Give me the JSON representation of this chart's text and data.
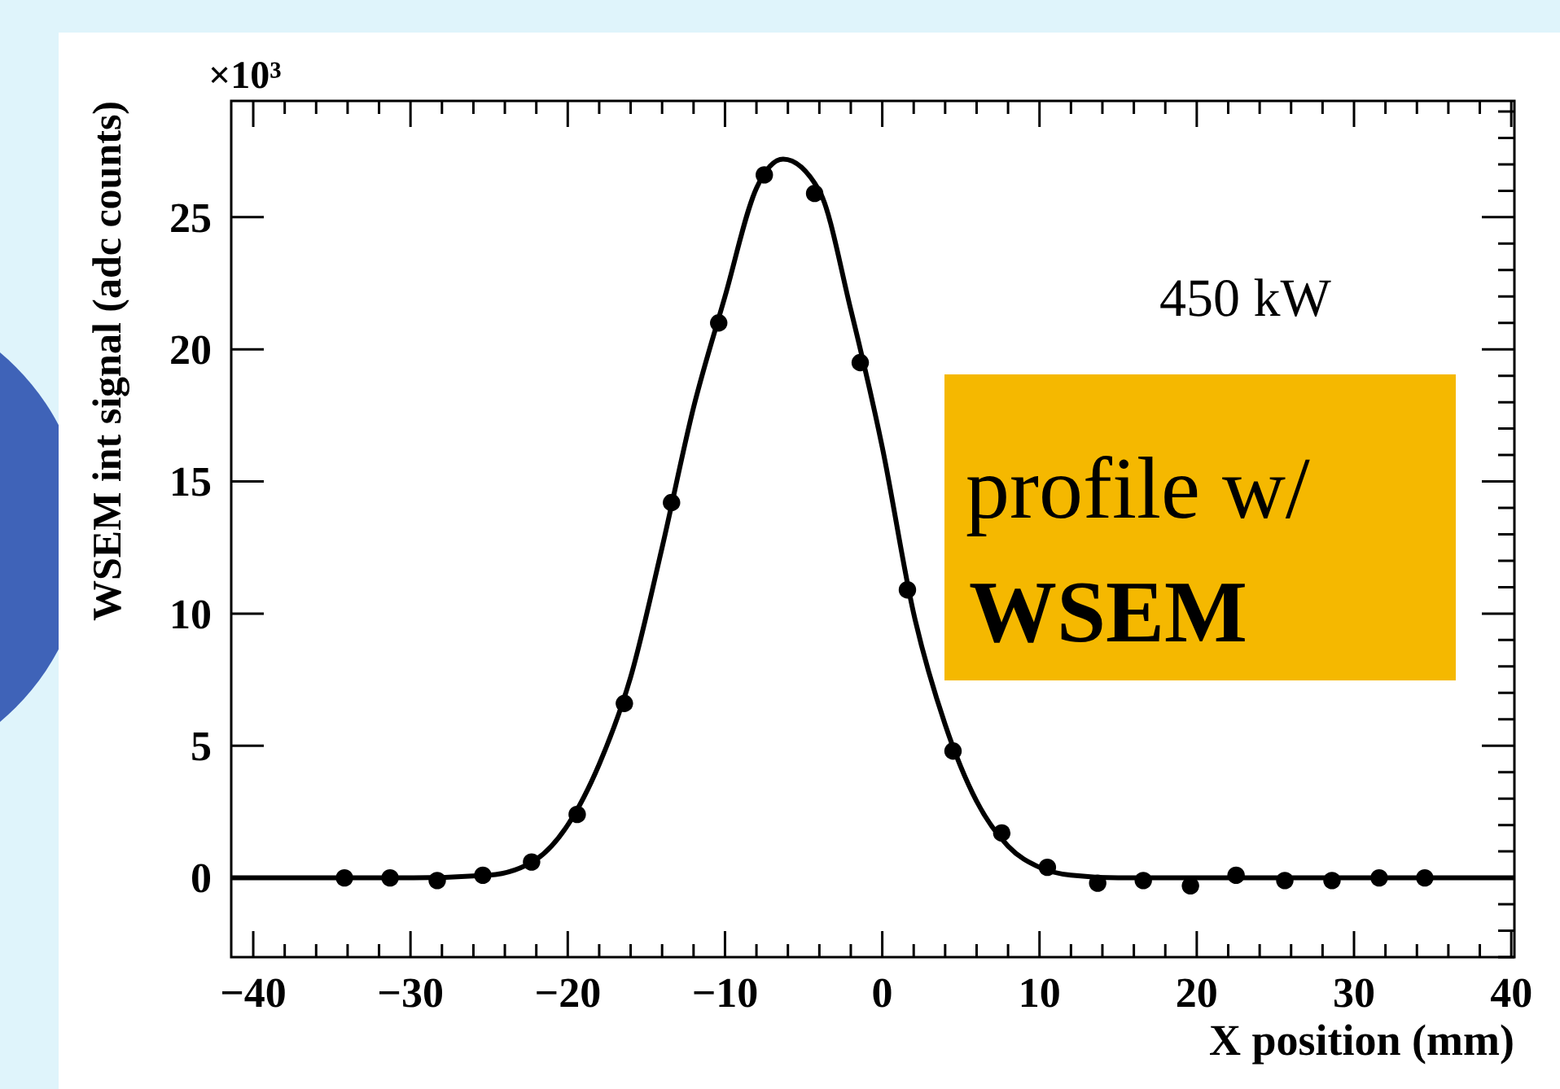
{
  "chart_data": {
    "type": "scatter",
    "xlabel": "X position (mm)",
    "ylabel": "WSEM int signal (adc counts)",
    "xlim": [
      -41.4,
      40.2
    ],
    "ylim": [
      -3,
      29.4
    ],
    "xticks": [
      -40,
      -30,
      -20,
      -10,
      0,
      10,
      20,
      30,
      40
    ],
    "yticks": [
      0,
      5,
      10,
      15,
      20,
      25
    ],
    "grid": false,
    "marker": "circle",
    "annotations": [
      "×10³",
      "450 kW",
      "profile w/",
      "WSEM"
    ],
    "series": [
      {
        "color": "#000000",
        "x": [
          -34.2,
          -31.3,
          -28.3,
          -25.4,
          -22.3,
          -19.4,
          -16.4,
          -13.4,
          -10.4,
          -7.5,
          -4.3,
          -1.4,
          1.6,
          4.5,
          7.6,
          10.5,
          13.7,
          16.6,
          19.6,
          22.5,
          25.6,
          28.6,
          31.6,
          34.5
        ],
        "values": [
          0,
          0,
          -0.1,
          0.1,
          0.6,
          2.4,
          6.6,
          14.2,
          21.0,
          26.6,
          25.9,
          19.5,
          10.9,
          4.8,
          1.7,
          0.4,
          -0.2,
          -0.1,
          -0.3,
          0.1,
          -0.1,
          -0.1,
          0,
          0
        ]
      },
      {
        "type": "line",
        "color": "#000000",
        "line_style": "solid",
        "marker": "none",
        "x": [
          -41.4,
          -30,
          -25,
          -22,
          -20,
          -18,
          -16,
          -14,
          -12,
          -10,
          -8,
          -6.3,
          -4,
          -2,
          0,
          2,
          4,
          6,
          8,
          10,
          12,
          15,
          40.2
        ],
        "values": [
          0,
          0,
          0.1,
          0.7,
          2.0,
          4.3,
          7.6,
          12.5,
          17.8,
          22.0,
          26.1,
          27.2,
          26.0,
          21.5,
          16.3,
          10.0,
          5.8,
          2.9,
          1.2,
          0.4,
          0.1,
          0,
          0
        ]
      }
    ]
  }
}
